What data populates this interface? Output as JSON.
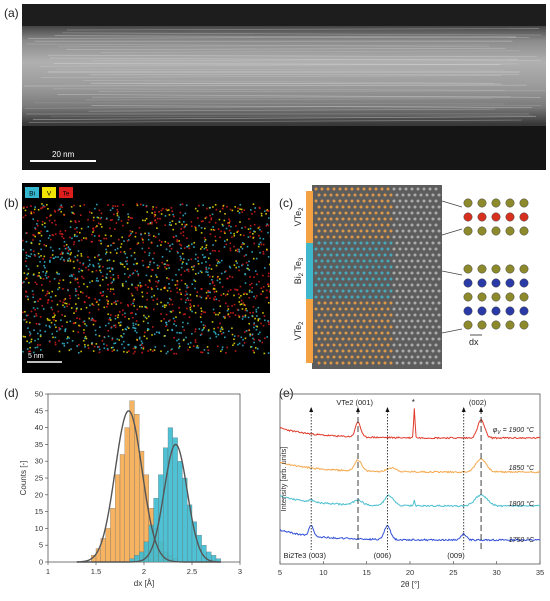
{
  "figure": {
    "panel_labels": [
      "(a)",
      "(b)",
      "(c)",
      "(d)",
      "(e)"
    ]
  },
  "panel_a": {
    "scalebar": "20 nm",
    "colors": {
      "background": "#1a1a1a",
      "bright": "#d8d8d8"
    }
  },
  "panel_b": {
    "legend": [
      {
        "label": "Bi",
        "color": "#35b7d0"
      },
      {
        "label": "V",
        "color": "#f2e400"
      },
      {
        "label": "Te",
        "color": "#e01e1e"
      }
    ],
    "scalebar": "5 nm"
  },
  "panel_c": {
    "layer_labels": [
      "VTe2",
      "Bi2Te3",
      "VTe2"
    ],
    "dx_label": "dx",
    "colors": {
      "vte2": "#f4a143",
      "bi2te3": "#3eb6cb",
      "atom_olive": "#8d8a2b",
      "atom_red": "#d7301f",
      "atom_blue": "#2a3aa6"
    }
  },
  "panel_d": {
    "chart_data": {
      "type": "bar",
      "xlabel": "dx [Å]",
      "ylabel": "Counts [-]",
      "xlim": [
        1,
        3
      ],
      "ylim": [
        0,
        50
      ],
      "xticks": [
        "1",
        "1.5",
        "2",
        "2.5",
        "3"
      ],
      "yticks": [
        "0",
        "5",
        "10",
        "15",
        "20",
        "25",
        "30",
        "35",
        "40",
        "45",
        "50"
      ],
      "bin_edges": [
        1.45,
        1.5,
        1.55,
        1.6,
        1.65,
        1.7,
        1.75,
        1.8,
        1.85,
        1.9,
        1.95,
        2.0,
        2.05,
        2.1,
        2.15,
        2.2,
        2.25,
        2.3,
        2.35,
        2.4,
        2.45,
        2.5,
        2.55,
        2.6,
        2.65,
        2.7,
        2.75,
        2.8
      ],
      "series": [
        {
          "color": "#f5ad55",
          "values": [
            2,
            4,
            7,
            10,
            16,
            26,
            32,
            40,
            48,
            44,
            33,
            26,
            16,
            10,
            6,
            3,
            2,
            1,
            0,
            0,
            0,
            0,
            0,
            0,
            0,
            0,
            0
          ]
        },
        {
          "color": "#3fbcd0",
          "values": [
            0,
            0,
            0,
            0,
            0,
            0,
            0,
            0,
            1,
            2,
            3,
            6,
            11,
            19,
            26,
            34,
            40,
            37,
            30,
            25,
            17,
            12,
            8,
            5,
            3,
            2,
            1
          ]
        }
      ],
      "fits": [
        {
          "mu": 1.84,
          "sigma": 0.14,
          "amp": 45
        },
        {
          "mu": 2.33,
          "sigma": 0.12,
          "amp": 35
        }
      ]
    }
  },
  "panel_e": {
    "chart_data": {
      "type": "line",
      "xlabel": "2θ [°]",
      "ylabel": "Intensity [arb. units]",
      "xlim": [
        5,
        35
      ],
      "xticks": [
        "5",
        "10",
        "15",
        "20",
        "25",
        "30",
        "35"
      ],
      "series": [
        {
          "name": "φV = 1900 °C",
          "color": "#e03a2a",
          "offset": 3.0
        },
        {
          "name": "1850 °C",
          "color": "#f5a94f",
          "offset": 2.0
        },
        {
          "name": "1800 °C",
          "color": "#4bbfd0",
          "offset": 1.0
        },
        {
          "name": "1750 °C",
          "color": "#3250d8",
          "offset": 0.0
        }
      ],
      "annotations": {
        "vte2_001": "VTe2 (001)",
        "star": "*",
        "p002": "(002)",
        "bi_003": "Bi2Te3 (003)",
        "p006": "(006)",
        "p009": "(009)"
      },
      "legend_phi_prefix": "φ",
      "legend_phi_sub": "V",
      "legend_phi_rest": " = 1900 °C",
      "legend_1850": "1850 °C",
      "legend_1800": "1800 °C",
      "legend_1750": "1750 °C"
    }
  }
}
